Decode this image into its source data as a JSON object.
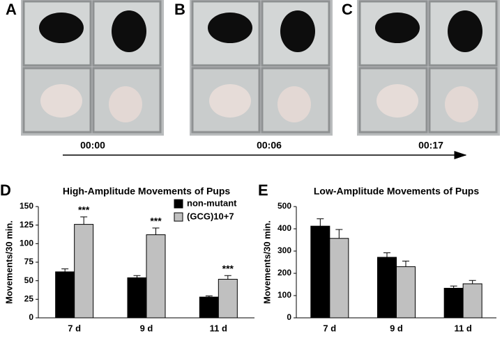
{
  "photos": {
    "labels": [
      "A",
      "B",
      "C"
    ],
    "times": [
      "00:00",
      "00:06",
      "00:17"
    ]
  },
  "chart_data": [
    {
      "type": "bar",
      "panel": "D",
      "title": "High-Amplitude Movements of Pups",
      "y_label": "Movements/30 min.",
      "categories": [
        "7 d",
        "9 d",
        "11 d"
      ],
      "series": [
        {
          "name": "non-mutant",
          "color": "#000000",
          "values": [
            62,
            54,
            28
          ],
          "errors": [
            4,
            3,
            1.5
          ]
        },
        {
          "name": "(GCG)10+7",
          "color": "#c0c0c0",
          "values": [
            126,
            112,
            52
          ],
          "errors": [
            10,
            9,
            5
          ],
          "annotations": [
            "***",
            "***",
            "***"
          ]
        }
      ],
      "ylim": [
        0,
        150
      ],
      "yticks": [
        0,
        25,
        50,
        75,
        100,
        125,
        150
      ],
      "grid": false,
      "legend": "top-right"
    },
    {
      "type": "bar",
      "panel": "E",
      "title": "Low-Amplitude Movements of Pups",
      "y_label": "Movements/30 min.",
      "categories": [
        "7 d",
        "9 d",
        "11 d"
      ],
      "series": [
        {
          "color": "#000000",
          "values": [
            412,
            272,
            133
          ],
          "errors": [
            33,
            20,
            10
          ]
        },
        {
          "color": "#c0c0c0",
          "values": [
            357,
            230,
            153
          ],
          "errors": [
            40,
            25,
            15
          ]
        }
      ],
      "ylim": [
        0,
        500
      ],
      "yticks": [
        0,
        100,
        200,
        300,
        400,
        500
      ],
      "grid": false
    }
  ]
}
